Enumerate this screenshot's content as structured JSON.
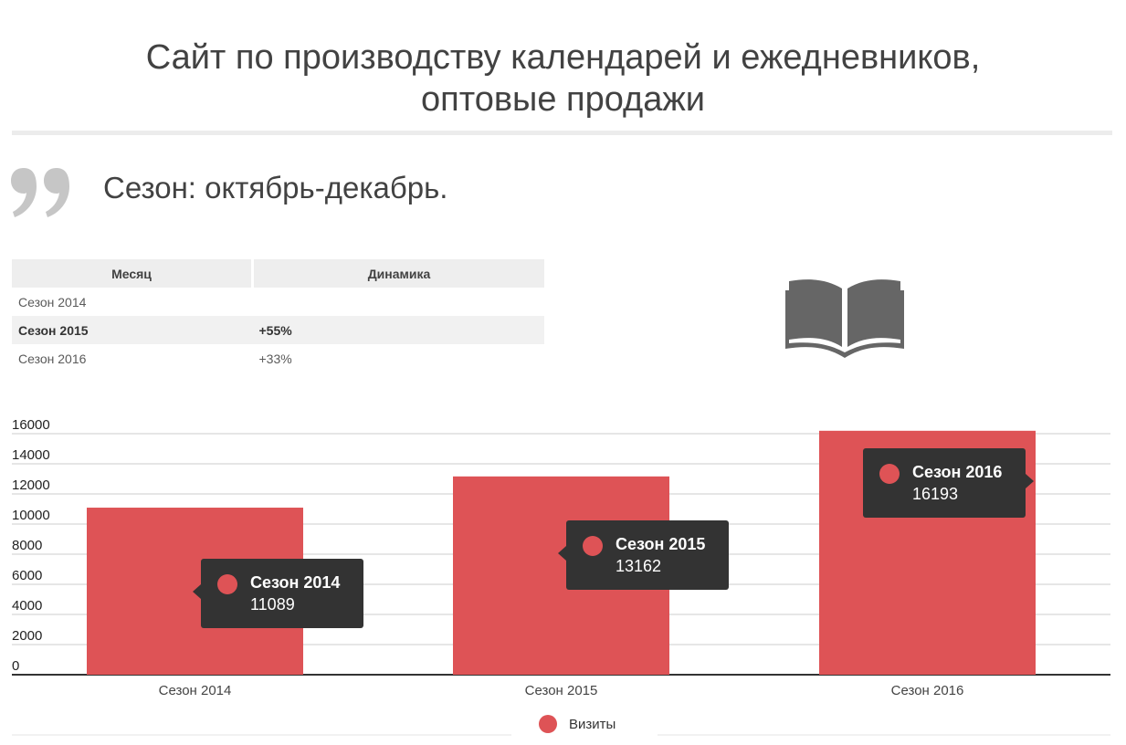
{
  "title": {
    "line1": "Сайт по производству календарей и ежедневников,",
    "line2": "оптовые продажи"
  },
  "quote": {
    "icon": "quote-icon",
    "text": "Сезон: октябрь-декабрь."
  },
  "table": {
    "headers": [
      "Месяц",
      "Динамика"
    ],
    "rows": [
      {
        "label": "Сезон 2014",
        "value": ""
      },
      {
        "label": "Сезон 2015",
        "value": "+55%"
      },
      {
        "label": "Сезон 2016",
        "value": "+33%"
      }
    ]
  },
  "book_icon": "open-book-icon",
  "colors": {
    "bar": "#de5356",
    "tooltip_bg": "#333333",
    "grid": "#cccccc",
    "axis": "#333333"
  },
  "chart_data": {
    "type": "bar",
    "categories": [
      "Сезон 2014",
      "Сезон 2015",
      "Сезон 2016"
    ],
    "series": [
      {
        "name": "Визиты",
        "values": [
          11089,
          13162,
          16193
        ]
      }
    ],
    "ylim": [
      0,
      16000
    ],
    "yticks": [
      0,
      2000,
      4000,
      6000,
      8000,
      10000,
      12000,
      14000,
      16000
    ],
    "grid": true,
    "legend": "bottom-center",
    "tooltips": [
      {
        "title": "Сезон 2014",
        "value": "11089"
      },
      {
        "title": "Сезон 2015",
        "value": "13162"
      },
      {
        "title": "Сезон 2016",
        "value": "16193"
      }
    ]
  }
}
